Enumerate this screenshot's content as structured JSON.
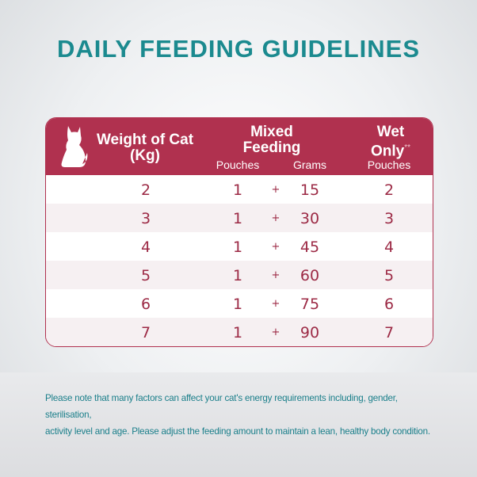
{
  "header": {
    "title": "DAILY FEEDING GUIDELINES"
  },
  "table": {
    "headers": {
      "weight": [
        "Weight of Cat",
        "(Kg)"
      ],
      "mixed": [
        "Mixed",
        "Feeding"
      ],
      "wet": [
        "Wet",
        "Only"
      ],
      "wet_mark": "**"
    },
    "subheaders": [
      "Pouches",
      "Grams",
      "Pouches"
    ],
    "rows": [
      [
        "2",
        "1",
        "+",
        "15",
        "2"
      ],
      [
        "3",
        "1",
        "+",
        "30",
        "3"
      ],
      [
        "4",
        "1",
        "+",
        "45",
        "4"
      ],
      [
        "5",
        "1",
        "+",
        "60",
        "5"
      ],
      [
        "6",
        "1",
        "+",
        "75",
        "6"
      ],
      [
        "7",
        "1",
        "+",
        "90",
        "7"
      ]
    ]
  },
  "note": [
    "Please note that many factors can affect your cat's energy requirements including, gender, sterilisation,",
    "activity level and age. Please adjust the feeding amount to maintain a lean, healthy body condition."
  ]
}
